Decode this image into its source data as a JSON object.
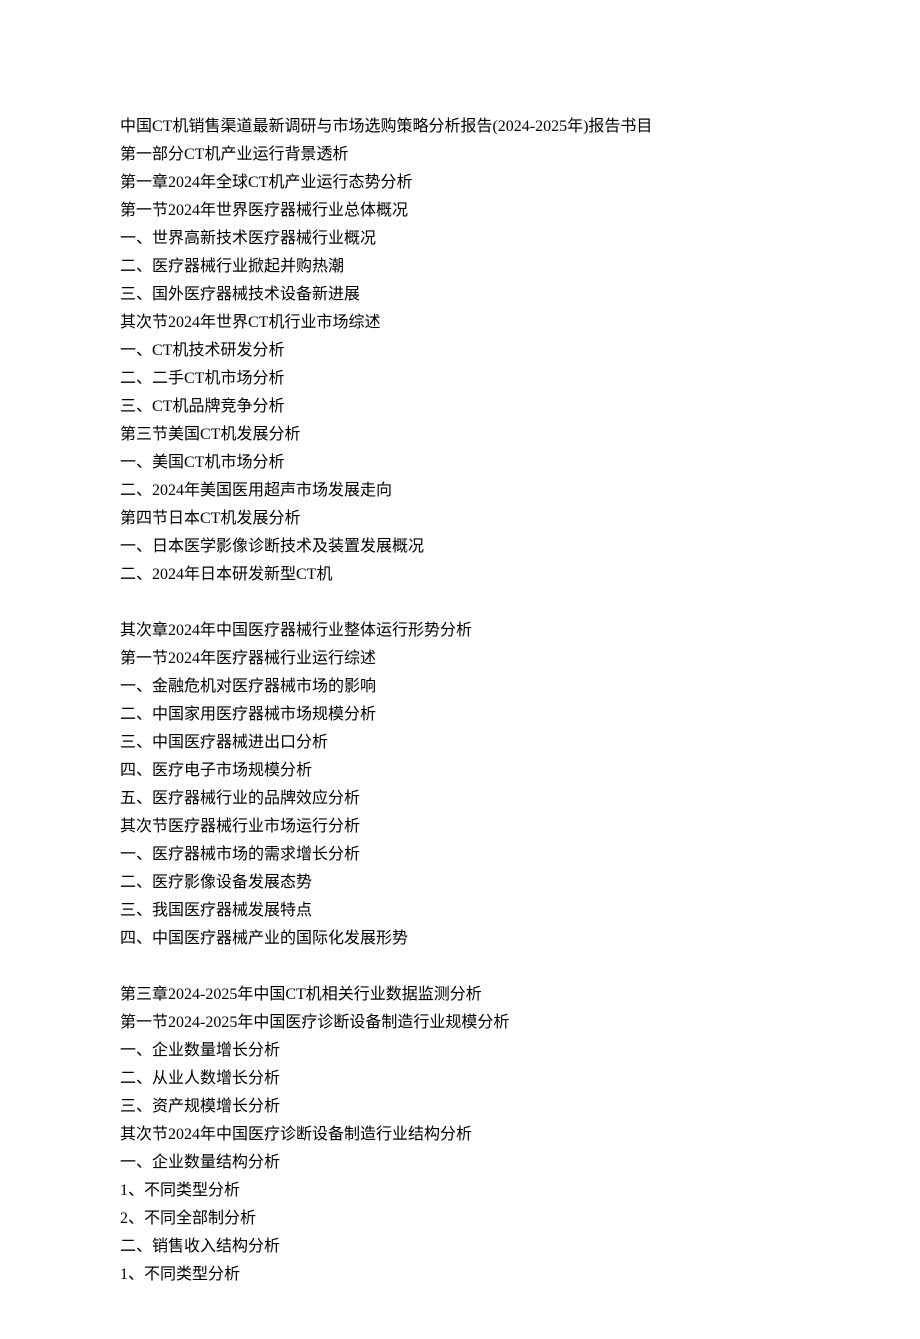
{
  "lines": [
    "中国CT机销售渠道最新调研与市场选购策略分析报告(2024-2025年)报告书目",
    "第一部分CT机产业运行背景透析",
    "第一章2024年全球CT机产业运行态势分析",
    "第一节2024年世界医疗器械行业总体概况",
    "一、世界高新技术医疗器械行业概况",
    "二、医疗器械行业掀起并购热潮",
    "三、国外医疗器械技术设备新进展",
    "其次节2024年世界CT机行业市场综述",
    "一、CT机技术研发分析",
    "二、二手CT机市场分析",
    "三、CT机品牌竞争分析",
    "第三节美国CT机发展分析",
    "一、美国CT机市场分析",
    "二、2024年美国医用超声市场发展走向",
    "第四节日本CT机发展分析",
    "一、日本医学影像诊断技术及装置发展概况",
    "二、2024年日本研发新型CT机",
    "",
    "其次章2024年中国医疗器械行业整体运行形势分析",
    "第一节2024年医疗器械行业运行综述",
    "一、金融危机对医疗器械市场的影响",
    "二、中国家用医疗器械市场规模分析",
    "三、中国医疗器械进出口分析",
    "四、医疗电子市场规模分析",
    "五、医疗器械行业的品牌效应分析",
    "其次节医疗器械行业市场运行分析",
    "一、医疗器械市场的需求增长分析",
    "二、医疗影像设备发展态势",
    "三、我国医疗器械发展特点",
    "四、中国医疗器械产业的国际化发展形势",
    "",
    "第三章2024-2025年中国CT机相关行业数据监测分析",
    "第一节2024-2025年中国医疗诊断设备制造行业规模分析",
    "一、企业数量增长分析",
    "二、从业人数增长分析",
    "三、资产规模增长分析",
    "其次节2024年中国医疗诊断设备制造行业结构分析",
    "一、企业数量结构分析",
    "1、不同类型分析",
    "2、不同全部制分析",
    "二、销售收入结构分析",
    "1、不同类型分析"
  ]
}
